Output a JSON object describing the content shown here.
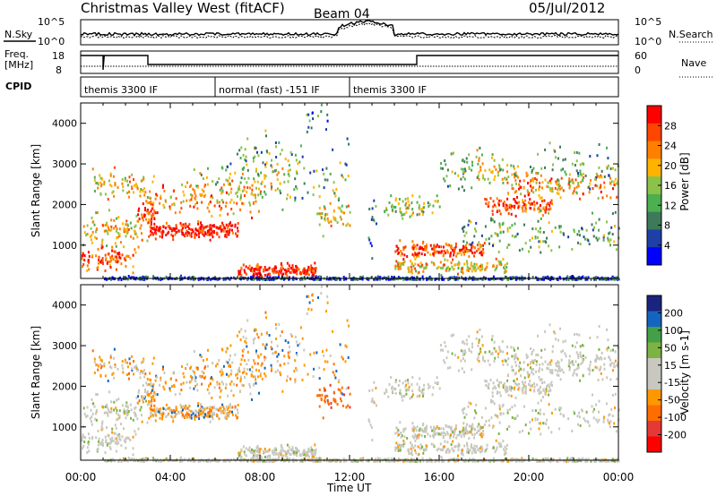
{
  "header": {
    "title": "Christmas Valley West (fitACF)",
    "beam": "Beam 04",
    "date": "05/Jul/2012"
  },
  "noise_panel": {
    "left_label": "N.Sky",
    "right_label": "N.Search",
    "left_ticks": [
      "10^5",
      "10^0"
    ],
    "right_ticks": [
      "10^5",
      "10^0"
    ]
  },
  "freq_panel": {
    "left_label_1": "Freq.",
    "left_label_2": "[MHz]",
    "right_label": "Nave",
    "left_ticks": [
      "18",
      "8"
    ],
    "right_ticks": [
      "60",
      "0"
    ]
  },
  "cpid": {
    "label": "CPID",
    "segments": [
      {
        "name": "themis 3300 IF",
        "start_h": 0,
        "end_h": 6
      },
      {
        "name": "normal (fast) -151 IF",
        "start_h": 6,
        "end_h": 12
      },
      {
        "name": "themis 3300 IF",
        "start_h": 12,
        "end_h": 24
      }
    ]
  },
  "colors": {
    "power_scale": [
      "#0000ff",
      "#1e3fa8",
      "#3d7a5a",
      "#4caf50",
      "#8bc34a",
      "#ffb300",
      "#ff7f00",
      "#ff4500",
      "#ff0000"
    ],
    "velocity_scale": [
      "#1a237e",
      "#1565c0",
      "#43a047",
      "#7cb342",
      "#c8c8c0",
      "#c8c8c0",
      "#ff9800",
      "#ff6d00",
      "#e53935",
      "#ff0000"
    ]
  },
  "chart_data": [
    {
      "type": "heatmap",
      "name": "power",
      "ylabel": "Slant Range [km]",
      "xlabel": "Time UT",
      "x_range_hours": [
        0,
        24
      ],
      "y_range_km": [
        180,
        4500
      ],
      "y_ticks": [
        1000,
        2000,
        3000,
        4000
      ],
      "x_ticks": [
        "00:00",
        "04:00",
        "08:00",
        "12:00",
        "16:00",
        "20:00",
        "00:00"
      ],
      "colorbar": {
        "label": "Power [dB]",
        "ticks": [
          "4",
          "8",
          "12",
          "16",
          "20",
          "24",
          "28"
        ],
        "range": [
          0,
          30
        ]
      }
    },
    {
      "type": "heatmap",
      "name": "velocity",
      "ylabel": "Slant Range [km]",
      "xlabel": "Time UT",
      "x_range_hours": [
        0,
        24
      ],
      "y_range_km": [
        180,
        4500
      ],
      "y_ticks": [
        1000,
        2000,
        3000,
        4000
      ],
      "x_ticks": [
        "00:00",
        "04:00",
        "08:00",
        "12:00",
        "16:00",
        "20:00",
        "00:00"
      ],
      "colorbar": {
        "label": "Velocity [m s-1]",
        "ticks": [
          "200",
          "100",
          "50",
          "15",
          "-15",
          "-50",
          "-100",
          "-200"
        ],
        "range": [
          -250,
          250
        ]
      }
    }
  ]
}
